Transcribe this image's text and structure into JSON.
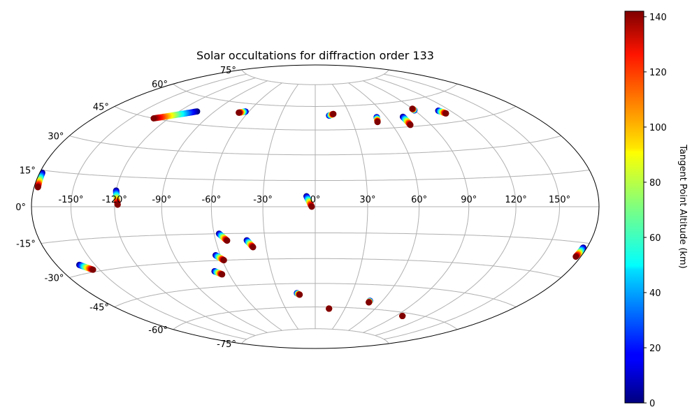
{
  "chart_data": {
    "type": "scatter",
    "projection": "hammer",
    "title": "Solar occultations for diffraction order 133",
    "xlabel": "",
    "ylabel": "",
    "grid": true,
    "lon_ticks": [
      "-150°",
      "-120°",
      "-90°",
      "-60°",
      "-30°",
      "0°",
      "30°",
      "60°",
      "90°",
      "120°",
      "150°"
    ],
    "lon_tick_values": [
      -150,
      -120,
      -90,
      -60,
      -30,
      0,
      30,
      60,
      90,
      120,
      150
    ],
    "lat_ticks": [
      "75°",
      "60°",
      "45°",
      "30°",
      "15°",
      "0°",
      "-15°",
      "-30°",
      "-45°",
      "-60°",
      "-75°"
    ],
    "lat_tick_values": [
      75,
      60,
      45,
      30,
      15,
      0,
      -15,
      -30,
      -45,
      -60,
      -75
    ],
    "colorbar": {
      "label": "Tangent Point Altitude (km)",
      "colormap": "jet",
      "range": [
        0,
        142
      ],
      "ticks": [
        "0",
        "20",
        "40",
        "60",
        "80",
        "100",
        "120",
        "140"
      ],
      "tick_values": [
        0,
        20,
        40,
        60,
        80,
        100,
        120,
        140
      ]
    },
    "tracks": [
      {
        "lon0": -178,
        "lat0": 14,
        "lon1": -177,
        "lat1": 8
      },
      {
        "lon0": -120,
        "lat0": 8,
        "lon1": -118,
        "lat1": 1
      },
      {
        "lon0": -105,
        "lat0": 52,
        "lon1": -132,
        "lat1": 45
      },
      {
        "lon0": -63,
        "lat0": 55,
        "lon1": -68,
        "lat1": 54
      },
      {
        "lon0": 12,
        "lat0": 54,
        "lon1": 16,
        "lat1": 55
      },
      {
        "lon0": 52,
        "lat0": 52,
        "lon1": 50,
        "lat1": 49
      },
      {
        "lon0": 74,
        "lat0": 51,
        "lon1": 74,
        "lat1": 46
      },
      {
        "lon0": 90,
        "lat0": 54,
        "lon1": 90,
        "lat1": 55
      },
      {
        "lon0": 110,
        "lat0": 52,
        "lon1": 113,
        "lat1": 50
      },
      {
        "lon0": -5,
        "lat0": 6,
        "lon1": -2,
        "lat1": 0
      },
      {
        "lon0": -162,
        "lat0": -26,
        "lon1": -155,
        "lat1": -29
      },
      {
        "lon0": -57,
        "lat0": -15,
        "lon1": -53,
        "lat1": -19
      },
      {
        "lon0": -41,
        "lat0": -19,
        "lon1": -38,
        "lat1": -23
      },
      {
        "lon0": -63,
        "lat0": -27,
        "lon1": -59,
        "lat1": -30
      },
      {
        "lon0": -69,
        "lat0": -36,
        "lon1": -65,
        "lat1": -38
      },
      {
        "lon0": 177,
        "lat0": -17,
        "lon1": 176,
        "lat1": -21
      },
      {
        "lon0": -15,
        "lat0": -51,
        "lon1": -13,
        "lat1": -52
      },
      {
        "lon0": 14,
        "lat0": -61,
        "lon1": 14,
        "lat1": -61
      },
      {
        "lon0": 49,
        "lat0": -55,
        "lon1": 49,
        "lat1": -56
      },
      {
        "lon0": 97,
        "lat0": -62,
        "lon1": 97,
        "lat1": -62
      }
    ]
  }
}
